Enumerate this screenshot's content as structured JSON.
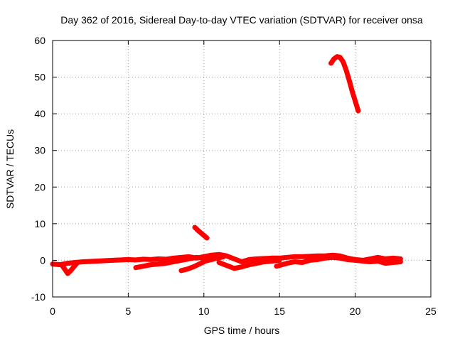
{
  "chart_data": {
    "type": "scatter",
    "title": "Day 362 of 2016, Sidereal Day-to-day VTEC variation (SDTVAR) for receiver onsa",
    "xlabel": "GPS time / hours",
    "ylabel": "SDTVAR / TECUs",
    "xlim": [
      0,
      25
    ],
    "ylim": [
      -10,
      60
    ],
    "xticks": [
      0,
      5,
      10,
      15,
      20,
      25
    ],
    "yticks": [
      -10,
      0,
      10,
      20,
      30,
      40,
      50,
      60
    ],
    "grid": true,
    "series": [
      {
        "name": "SDTVAR",
        "color": "#ff0000",
        "segments": [
          {
            "x": [
              0.0,
              0.5,
              1.0,
              1.5,
              2.0,
              2.5,
              3.0,
              3.5,
              4.0,
              4.5,
              5.0,
              5.5,
              6.0,
              6.5,
              7.0,
              7.5,
              8.0,
              8.5,
              9.0,
              9.5,
              10.0,
              10.5,
              11.0,
              11.5,
              12.0,
              12.5,
              13.0,
              13.5,
              14.0,
              14.5,
              15.0,
              15.5,
              16.0,
              16.5,
              17.0,
              17.5,
              18.0,
              18.5,
              19.0,
              19.5,
              20.0,
              20.5,
              21.0,
              21.5,
              22.0,
              22.5,
              23.0
            ],
            "y": [
              -1.0,
              -1.2,
              -0.8,
              -0.6,
              -0.4,
              -0.3,
              -0.2,
              -0.1,
              0.0,
              0.1,
              0.2,
              0.1,
              0.3,
              0.2,
              0.4,
              0.3,
              0.6,
              0.8,
              1.0,
              0.6,
              1.0,
              1.4,
              1.6,
              1.2,
              0.4,
              -0.4,
              0.2,
              0.4,
              0.5,
              0.6,
              0.6,
              0.8,
              1.0,
              1.0,
              1.1,
              1.2,
              1.2,
              1.4,
              1.2,
              0.6,
              0.2,
              0.0,
              0.4,
              0.8,
              0.4,
              0.6,
              0.4
            ]
          },
          {
            "x": [
              5.5,
              6.0,
              6.5,
              7.0,
              7.5,
              8.0,
              8.5,
              9.0,
              9.5,
              10.0,
              10.5
            ],
            "y": [
              -2.0,
              -1.6,
              -1.2,
              -1.0,
              -0.8,
              -0.4,
              0.0,
              0.4,
              0.8,
              0.6,
              0.2
            ]
          },
          {
            "x": [
              8.5,
              8.9,
              9.3,
              9.7,
              10.1,
              10.5,
              10.9,
              11.3
            ],
            "y": [
              -2.8,
              -2.4,
              -1.8,
              -1.0,
              -0.2,
              0.2,
              0.6,
              1.0
            ]
          },
          {
            "x": [
              11.0,
              11.5,
              12.0,
              12.5,
              13.0,
              13.5,
              14.0,
              14.5,
              15.0
            ],
            "y": [
              -0.6,
              -1.4,
              -2.2,
              -1.8,
              -1.2,
              -0.8,
              -0.4,
              -0.2,
              0.0
            ]
          },
          {
            "x": [
              14.8,
              15.5,
              16.0,
              16.5,
              17.0,
              17.5,
              18.0,
              18.5,
              19.0,
              19.5,
              20.0,
              20.5,
              21.0,
              21.5,
              22.0,
              22.5,
              23.0
            ],
            "y": [
              -1.6,
              -0.8,
              -0.4,
              -0.6,
              0.0,
              0.2,
              0.6,
              0.8,
              0.6,
              0.2,
              0.0,
              -0.2,
              -0.4,
              -0.2,
              -0.8,
              -0.6,
              -0.4
            ]
          },
          {
            "x": [
              0.6,
              0.8,
              1.0,
              1.2,
              1.4,
              1.6
            ],
            "y": [
              -1.2,
              -2.4,
              -3.6,
              -2.8,
              -1.8,
              -0.8
            ]
          },
          {
            "x": [
              9.4,
              9.6,
              9.8,
              10.0,
              10.2
            ],
            "y": [
              9.0,
              8.2,
              7.5,
              6.8,
              6.1
            ]
          },
          {
            "x": [
              18.4,
              18.6,
              18.8,
              19.0,
              19.2,
              19.4,
              19.6,
              19.8,
              20.0,
              20.2
            ],
            "y": [
              53.8,
              55.0,
              55.6,
              55.4,
              54.2,
              52.0,
              49.2,
              46.2,
              43.5,
              40.8
            ]
          }
        ]
      }
    ]
  }
}
